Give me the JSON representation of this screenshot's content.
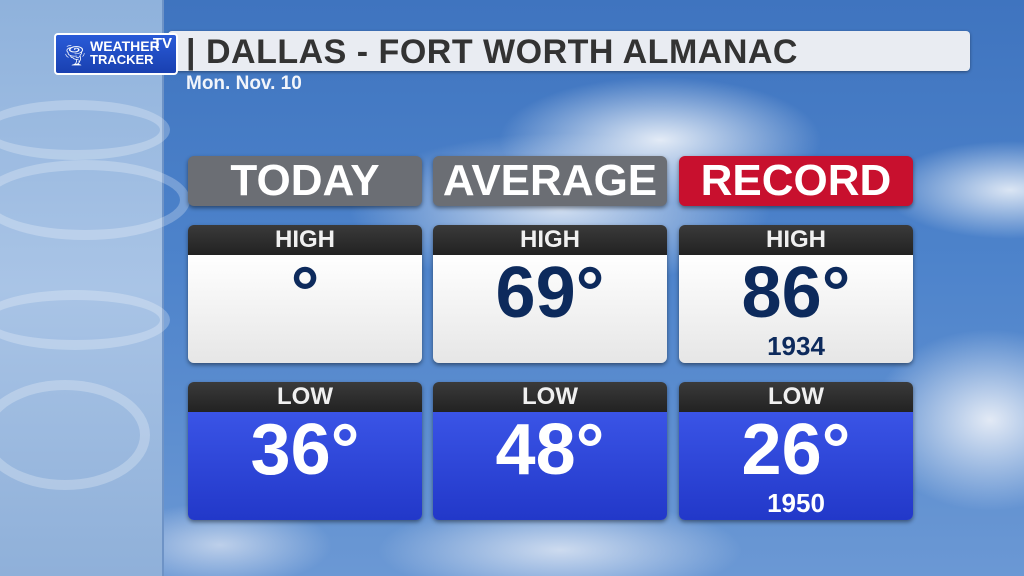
{
  "logo": {
    "line1": "WEATHER",
    "line2": "TRACKER",
    "tv": "TV"
  },
  "title": "| DALLAS - FORT WORTH ALMANAC",
  "date": "Mon. Nov. 10",
  "columns": [
    {
      "header": "TODAY",
      "header_color": "#6b6e74",
      "high": {
        "label": "HIGH",
        "value": "°",
        "year": ""
      },
      "low": {
        "label": "LOW",
        "value": "36°",
        "year": ""
      }
    },
    {
      "header": "AVERAGE",
      "header_color": "#6b6e74",
      "high": {
        "label": "HIGH",
        "value": "69°",
        "year": ""
      },
      "low": {
        "label": "LOW",
        "value": "48°",
        "year": ""
      }
    },
    {
      "header": "RECORD",
      "header_color": "#c8102e",
      "high": {
        "label": "HIGH",
        "value": "86°",
        "year": "1934"
      },
      "low": {
        "label": "LOW",
        "value": "26°",
        "year": "1950"
      }
    }
  ]
}
